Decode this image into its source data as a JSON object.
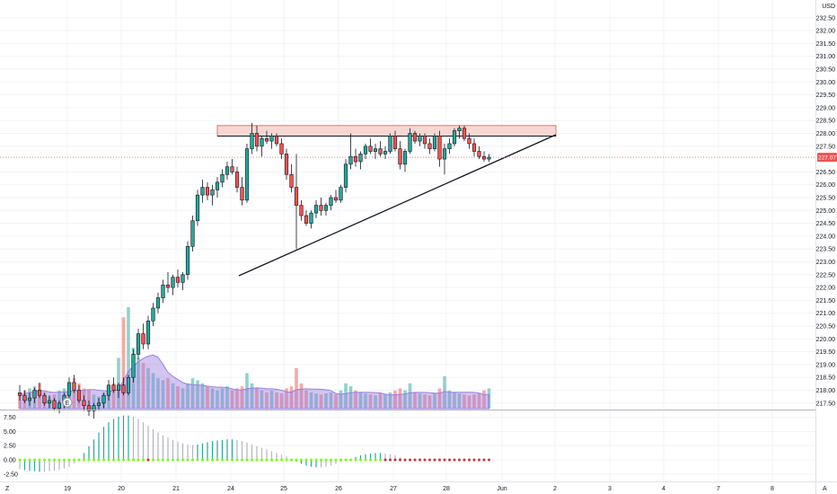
{
  "price_axis": {
    "currency": "USD",
    "labels": [
      "232.50",
      "232.00",
      "231.50",
      "231.00",
      "230.50",
      "230.00",
      "229.50",
      "229.00",
      "228.50",
      "228.00",
      "227.50",
      "226.50",
      "226.00",
      "225.50",
      "225.00",
      "224.50",
      "224.00",
      "223.50",
      "223.00",
      "222.50",
      "222.00",
      "221.50",
      "221.00",
      "220.50",
      "220.00",
      "219.50",
      "219.00",
      "218.50",
      "218.00",
      "217.50"
    ],
    "values": [
      232.5,
      232.0,
      231.5,
      231.0,
      230.5,
      230.0,
      229.5,
      229.0,
      228.5,
      228.0,
      227.5,
      226.5,
      226.0,
      225.5,
      225.0,
      224.5,
      224.0,
      223.5,
      223.0,
      222.5,
      222.0,
      221.5,
      221.0,
      220.5,
      220.0,
      219.5,
      219.0,
      218.5,
      218.0,
      217.5
    ],
    "current_price_label": "227.07",
    "current_price": 227.07
  },
  "osc_axis": {
    "labels": [
      "7.50",
      "5.00",
      "2.50",
      "0.00",
      "-2.50"
    ],
    "values": [
      7.5,
      5.0,
      2.5,
      0.0,
      -2.5
    ]
  },
  "time_axis": {
    "labels": [
      "19",
      "20",
      "21",
      "24",
      "25",
      "26",
      "27",
      "28",
      "Jun",
      "2",
      "3",
      "4",
      "7",
      "8"
    ]
  },
  "corner": {
    "left_label": "Z",
    "right_label": "A",
    "earnings_marker": "E"
  },
  "colors": {
    "up": "#26a69a",
    "down": "#ef5350",
    "resistance_fill": "#f8d7d2",
    "resistance_stroke": "#e57373",
    "volume_ma": "#9c7ede",
    "osc_up": "#26a69a",
    "osc_down": "#b2b5be",
    "dot_positive": "#76ff03",
    "dot_negative": "#d32f2f",
    "price_line": "#f77c80"
  },
  "chart_data": {
    "type": "candlestick",
    "resistance_zone": [
      228.0,
      228.2
    ],
    "candles": [
      [
        217.9,
        218.2,
        217.6,
        217.8
      ],
      [
        217.8,
        218.0,
        217.5,
        217.6
      ],
      [
        217.6,
        217.9,
        217.4,
        217.7
      ],
      [
        217.7,
        218.1,
        217.5,
        218.0
      ],
      [
        218.0,
        218.3,
        217.7,
        217.8
      ],
      [
        217.8,
        217.9,
        217.4,
        217.5
      ],
      [
        217.5,
        217.8,
        217.3,
        217.6
      ],
      [
        217.6,
        217.7,
        217.2,
        217.3
      ],
      [
        217.3,
        217.6,
        217.1,
        217.5
      ],
      [
        217.5,
        217.9,
        217.3,
        217.8
      ],
      [
        217.8,
        218.5,
        217.6,
        218.3
      ],
      [
        218.3,
        218.6,
        217.9,
        218.0
      ],
      [
        218.0,
        218.2,
        217.5,
        217.6
      ],
      [
        217.6,
        217.8,
        217.2,
        217.4
      ],
      [
        217.4,
        217.6,
        217.0,
        217.2
      ],
      [
        217.2,
        217.5,
        216.9,
        217.4
      ],
      [
        217.4,
        217.7,
        217.2,
        217.5
      ],
      [
        217.5,
        217.9,
        217.3,
        217.8
      ],
      [
        217.8,
        218.4,
        217.6,
        218.2
      ],
      [
        218.2,
        218.5,
        217.9,
        218.0
      ],
      [
        218.0,
        218.3,
        217.7,
        218.2
      ],
      [
        218.2,
        218.5,
        217.8,
        217.9
      ],
      [
        217.9,
        218.6,
        217.8,
        218.5
      ],
      [
        218.5,
        219.6,
        218.3,
        219.4
      ],
      [
        219.4,
        220.4,
        219.2,
        220.2
      ],
      [
        220.2,
        220.6,
        219.6,
        219.8
      ],
      [
        219.8,
        220.9,
        219.6,
        220.7
      ],
      [
        220.7,
        221.4,
        220.5,
        221.2
      ],
      [
        221.2,
        221.8,
        221.0,
        221.6
      ],
      [
        221.6,
        222.3,
        221.4,
        222.1
      ],
      [
        222.1,
        222.6,
        221.8,
        222.0
      ],
      [
        222.0,
        222.5,
        221.7,
        222.4
      ],
      [
        222.4,
        222.7,
        222.0,
        222.2
      ],
      [
        222.2,
        222.6,
        221.9,
        222.5
      ],
      [
        222.5,
        223.8,
        222.3,
        223.6
      ],
      [
        223.6,
        224.8,
        223.4,
        224.6
      ],
      [
        224.6,
        225.8,
        224.4,
        225.6
      ],
      [
        225.6,
        226.2,
        225.3,
        225.9
      ],
      [
        225.9,
        226.1,
        225.4,
        225.6
      ],
      [
        225.6,
        226.0,
        225.2,
        225.8
      ],
      [
        225.8,
        226.3,
        225.5,
        226.1
      ],
      [
        226.1,
        226.6,
        225.9,
        226.4
      ],
      [
        226.4,
        226.9,
        226.2,
        226.7
      ],
      [
        226.7,
        227.0,
        226.4,
        226.5
      ],
      [
        226.5,
        226.7,
        225.7,
        225.9
      ],
      [
        225.9,
        226.3,
        225.2,
        225.4
      ],
      [
        225.4,
        227.6,
        225.3,
        227.4
      ],
      [
        227.4,
        228.4,
        227.2,
        228.0
      ],
      [
        228.0,
        228.3,
        227.3,
        227.5
      ],
      [
        227.5,
        227.9,
        227.1,
        227.8
      ],
      [
        227.8,
        228.1,
        227.6,
        227.7
      ],
      [
        227.7,
        228.0,
        227.4,
        227.9
      ],
      [
        227.9,
        228.0,
        227.5,
        227.6
      ],
      [
        227.6,
        227.8,
        227.0,
        227.2
      ],
      [
        227.2,
        227.4,
        226.2,
        226.4
      ],
      [
        226.4,
        226.8,
        225.7,
        225.9
      ],
      [
        225.9,
        227.2,
        223.5,
        225.2
      ],
      [
        225.2,
        225.4,
        224.6,
        224.8
      ],
      [
        224.8,
        225.0,
        224.4,
        224.5
      ],
      [
        224.5,
        225.0,
        224.3,
        224.9
      ],
      [
        224.9,
        225.4,
        224.7,
        225.2
      ],
      [
        225.2,
        225.5,
        224.8,
        225.0
      ],
      [
        225.0,
        225.3,
        224.8,
        225.2
      ],
      [
        225.2,
        225.6,
        225.0,
        225.5
      ],
      [
        225.5,
        225.8,
        225.3,
        225.4
      ],
      [
        225.4,
        226.0,
        225.3,
        225.9
      ],
      [
        225.9,
        227.0,
        225.7,
        226.8
      ],
      [
        226.8,
        228.0,
        226.6,
        227.1
      ],
      [
        227.1,
        227.4,
        226.7,
        226.9
      ],
      [
        226.9,
        227.3,
        226.6,
        227.2
      ],
      [
        227.2,
        227.6,
        227.0,
        227.5
      ],
      [
        227.5,
        227.8,
        227.2,
        227.3
      ],
      [
        227.3,
        227.6,
        227.0,
        227.4
      ],
      [
        227.4,
        227.7,
        227.1,
        227.2
      ],
      [
        227.2,
        227.5,
        227.0,
        227.3
      ],
      [
        227.3,
        228.0,
        227.2,
        227.9
      ],
      [
        227.9,
        228.1,
        227.3,
        227.4
      ],
      [
        227.4,
        227.7,
        226.6,
        226.8
      ],
      [
        226.8,
        227.4,
        226.5,
        227.3
      ],
      [
        227.3,
        228.2,
        227.2,
        228.0
      ],
      [
        228.0,
        228.1,
        227.6,
        227.7
      ],
      [
        227.7,
        228.0,
        227.5,
        227.9
      ],
      [
        227.9,
        228.0,
        227.4,
        227.6
      ],
      [
        227.6,
        227.8,
        227.2,
        227.4
      ],
      [
        227.4,
        228.0,
        227.3,
        227.9
      ],
      [
        227.9,
        228.1,
        226.7,
        227.0
      ],
      [
        227.0,
        227.6,
        226.4,
        227.4
      ],
      [
        227.4,
        227.8,
        227.2,
        227.6
      ],
      [
        227.6,
        228.2,
        227.5,
        228.1
      ],
      [
        228.1,
        228.3,
        227.8,
        228.2
      ],
      [
        228.2,
        228.3,
        227.7,
        227.8
      ],
      [
        227.8,
        228.0,
        227.4,
        227.6
      ],
      [
        227.6,
        227.8,
        227.1,
        227.3
      ],
      [
        227.3,
        227.5,
        227.0,
        227.1
      ],
      [
        227.1,
        227.3,
        226.9,
        227.0
      ],
      [
        227.0,
        227.2,
        226.9,
        227.07
      ]
    ],
    "volumes": [
      0.15,
      0.18,
      0.2,
      0.22,
      0.25,
      0.16,
      0.12,
      0.14,
      0.18,
      0.2,
      0.22,
      0.3,
      0.25,
      0.2,
      0.18,
      0.14,
      0.12,
      0.16,
      0.2,
      0.25,
      0.5,
      0.9,
      1.0,
      0.6,
      0.5,
      0.45,
      0.4,
      0.35,
      0.3,
      0.28,
      0.3,
      0.25,
      0.22,
      0.2,
      0.25,
      0.3,
      0.28,
      0.25,
      0.22,
      0.2,
      0.18,
      0.2,
      0.22,
      0.18,
      0.2,
      0.22,
      0.35,
      0.25,
      0.2,
      0.18,
      0.16,
      0.18,
      0.16,
      0.15,
      0.2,
      0.22,
      0.4,
      0.25,
      0.18,
      0.16,
      0.15,
      0.14,
      0.15,
      0.16,
      0.14,
      0.18,
      0.25,
      0.22,
      0.18,
      0.16,
      0.15,
      0.14,
      0.13,
      0.15,
      0.14,
      0.16,
      0.18,
      0.2,
      0.18,
      0.25,
      0.16,
      0.15,
      0.14,
      0.13,
      0.15,
      0.2,
      0.32,
      0.18,
      0.16,
      0.15,
      0.14,
      0.13,
      0.14,
      0.15,
      0.18,
      0.2
    ],
    "oscillator": [
      -1.6,
      -1.8,
      -1.9,
      -2.0,
      -2.1,
      -2.1,
      -2.0,
      -1.9,
      -1.7,
      -1.5,
      -1.2,
      -0.6,
      0.2,
      1.2,
      2.4,
      3.6,
      4.8,
      5.8,
      6.6,
      7.2,
      7.6,
      7.8,
      7.8,
      7.6,
      7.2,
      6.6,
      6.0,
      5.4,
      4.8,
      4.3,
      3.9,
      3.5,
      3.2,
      2.9,
      2.7,
      2.6,
      2.7,
      2.9,
      3.1,
      3.3,
      3.4,
      3.5,
      3.6,
      3.6,
      3.5,
      3.3,
      3.0,
      2.7,
      2.4,
      2.1,
      1.8,
      1.5,
      1.2,
      0.9,
      0.6,
      0.2,
      -0.3,
      -0.7,
      -1.0,
      -1.2,
      -1.3,
      -1.3,
      -1.2,
      -1.0,
      -0.7,
      -0.4,
      -0.1,
      0.2,
      0.5,
      0.8,
      1.0,
      1.1,
      1.2,
      1.2,
      1.1,
      1.0,
      0.8,
      0.5,
      0.2
    ],
    "dots_positive_until": 74
  }
}
